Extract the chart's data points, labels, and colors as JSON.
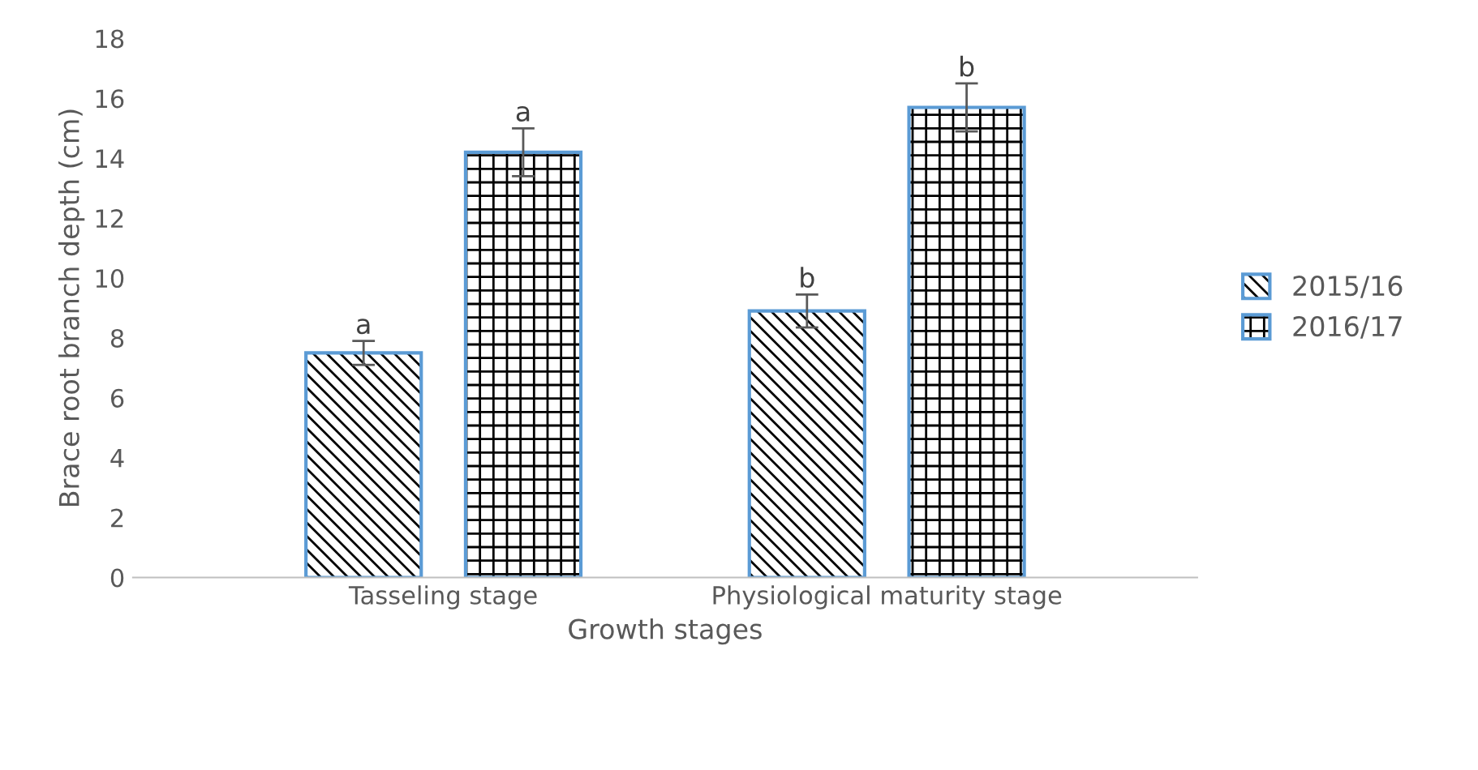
{
  "chart_data": {
    "type": "bar",
    "xlabel": "Growth stages",
    "ylabel": "Brace root branch depth (cm)",
    "categories": [
      "Tasseling stage",
      "Physiological maturity stage"
    ],
    "series": [
      {
        "name": "2015/16",
        "color": "#5b9bd5",
        "values": [
          7.5,
          8.9
        ],
        "errors": [
          0.4,
          0.55
        ],
        "value_labels": [
          "a",
          "b"
        ]
      },
      {
        "name": "2016/17",
        "color": "#5b9bd5",
        "values": [
          14.2,
          15.7
        ],
        "errors": [
          0.8,
          0.8
        ],
        "value_labels": [
          "a",
          "b"
        ]
      }
    ],
    "ylim": [
      0,
      18
    ],
    "yticks": [
      0,
      2,
      4,
      6,
      8,
      10,
      12,
      14,
      16,
      18
    ],
    "grid": false,
    "legend": "right"
  }
}
